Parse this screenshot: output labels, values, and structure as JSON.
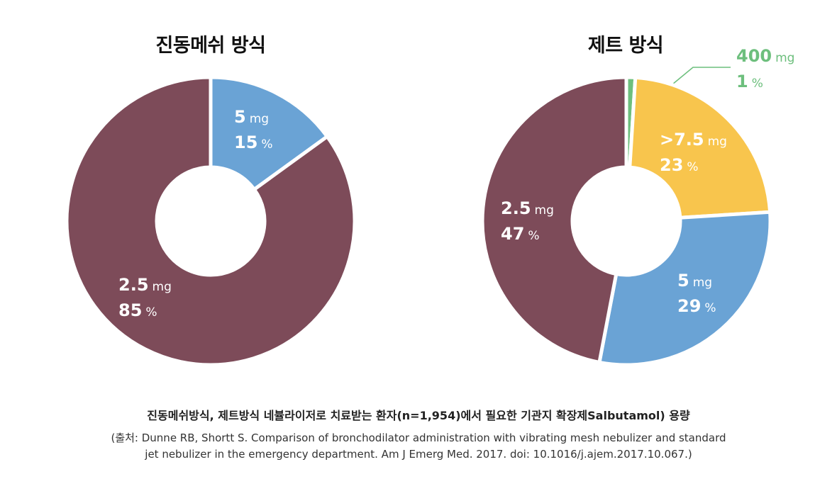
{
  "chart_data": [
    {
      "type": "pie",
      "title": "진동메쉬 방식",
      "slices": [
        {
          "label": "5 mg",
          "dose": "5",
          "unit": "mg",
          "percent": 15,
          "percent_text": "15",
          "color": "#6aa3d5"
        },
        {
          "label": "2.5 mg",
          "dose": "2.5",
          "unit": "mg",
          "percent": 85,
          "percent_text": "85",
          "color": "#7d4b59"
        }
      ]
    },
    {
      "type": "pie",
      "title": "제트 방식",
      "slices": [
        {
          "label": "400 mg",
          "dose": "400",
          "unit": "mg",
          "percent": 1,
          "percent_text": "1",
          "color": "#6dbf7d"
        },
        {
          "label": ">7.5 mg",
          "dose": ">7.5",
          "unit": "mg",
          "percent": 23,
          "percent_text": "23",
          "color": "#f8c54d"
        },
        {
          "label": "5 mg",
          "dose": "5",
          "unit": "mg",
          "percent": 29,
          "percent_text": "29",
          "color": "#6aa3d5"
        },
        {
          "label": "2.5 mg",
          "dose": "2.5",
          "unit": "mg",
          "percent": 47,
          "percent_text": "47",
          "color": "#7d4b59"
        }
      ]
    }
  ],
  "percent_symbol": "%",
  "caption": {
    "main": "진동메쉬방식, 제트방식 네뷸라이저로 치료받는 환자(n=1,954)에서 필요한 기관지 확장제Salbutamol) 용량",
    "source_line1": "(출처: Dunne RB, Shortt S. Comparison of bronchodilator administration with vibrating mesh nebulizer and standard",
    "source_line2": "jet nebulizer in the emergency department. Am J Emerg Med. 2017. doi: 10.1016/j.ajem.2017.10.067.)"
  }
}
